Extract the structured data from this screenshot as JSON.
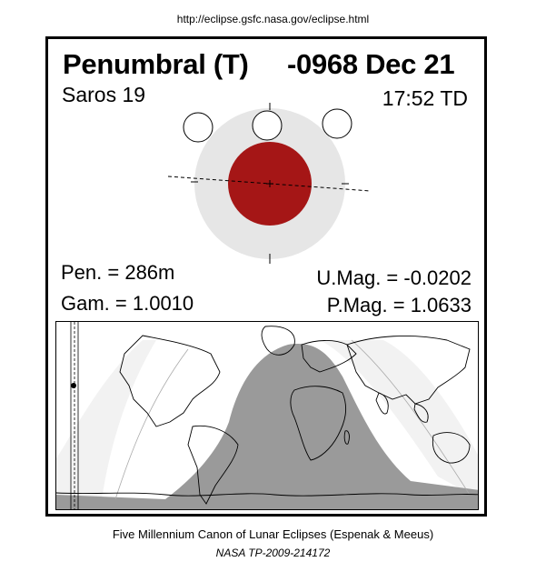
{
  "header": {
    "url": "http://eclipse.gsfc.nasa.gov/eclipse.html"
  },
  "eclipse": {
    "type_label": "Penumbral (T)",
    "date_label": "-0968 Dec 21",
    "saros_label": "Saros  19",
    "time_label": "17:52 TD",
    "pen_label": "Pen. = 286m",
    "gam_label": "Gam. = 1.0010",
    "umag_label": "U.Mag. = -0.0202",
    "pmag_label": "P.Mag. = 1.0633"
  },
  "colors": {
    "umbra": "#a51616",
    "penumbra": "#e6e6e6",
    "map_shadow": "#9a9a9a",
    "map_light": "#f2f2f2"
  },
  "footer": {
    "line1": "Five Millennium Canon of Lunar Eclipses (Espenak & Meeus)",
    "line2": "NASA TP-2009-214172"
  }
}
